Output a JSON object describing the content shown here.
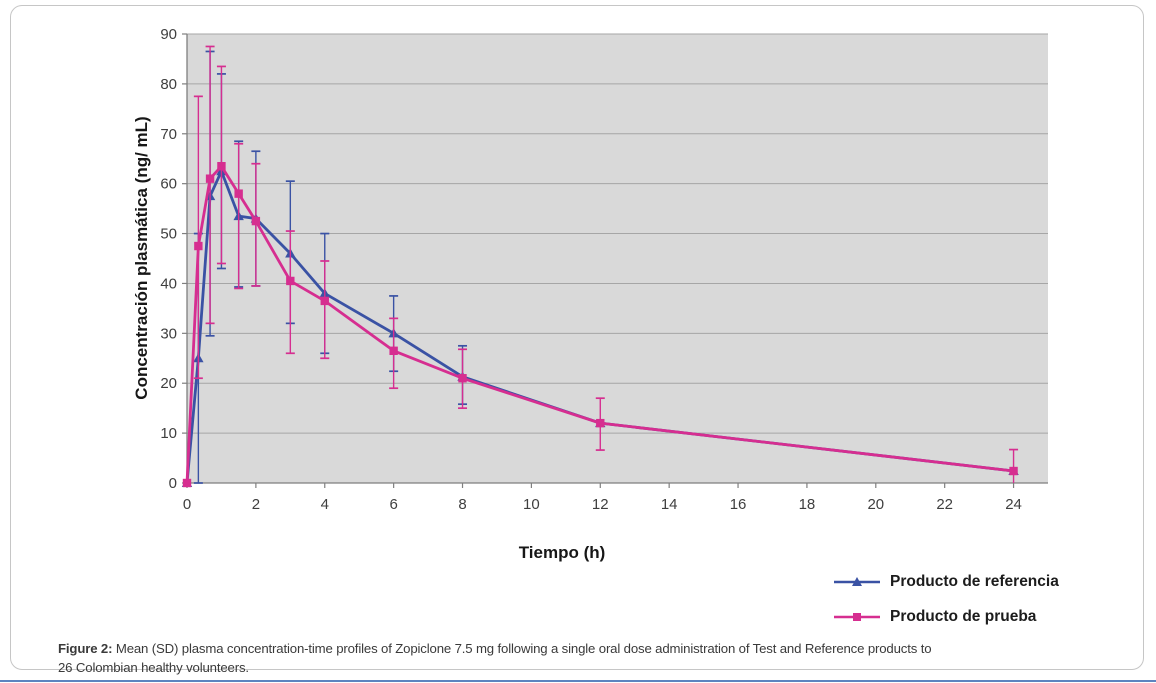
{
  "caption": {
    "label": "Figure 2:",
    "line1": " Mean (SD) plasma concentration-time profiles of Zopiclone 7.5 mg following a single oral dose administration of Test and Reference products to",
    "line2": "26 Colombian healthy volunteers."
  },
  "decor": {
    "bottom_rule_color": "#5d84c0",
    "border_color": "#c6c6c6"
  },
  "chart_data": {
    "type": "line",
    "title": "",
    "xlabel": "Tiempo (h)",
    "ylabel": "Concentración plasmática (ng/ mL)",
    "xlim": [
      0,
      25
    ],
    "ylim": [
      0,
      90
    ],
    "xticks": [
      0,
      2,
      4,
      6,
      8,
      10,
      12,
      14,
      16,
      18,
      20,
      22,
      24
    ],
    "yticks": [
      0,
      10,
      20,
      30,
      40,
      50,
      60,
      70,
      80,
      90
    ],
    "grid": "horizontal",
    "legend_position": "bottom-right",
    "plot_bg": "#d9d9d9",
    "grid_color": "#a6a6a6",
    "axis_color": "#7f7f7f",
    "tick_label_color": "#3f3f3f",
    "x": [
      0,
      0.33,
      0.67,
      1,
      1.5,
      2,
      3,
      4,
      6,
      8,
      12,
      24
    ],
    "series": [
      {
        "name": "Producto de referencia",
        "color": "#3a52a4",
        "marker": "triangle",
        "values": [
          0,
          25,
          57.5,
          62.5,
          53.5,
          53,
          46,
          38,
          30,
          21.3,
          12,
          2.4
        ],
        "err_lo": [
          null,
          0,
          29.5,
          43,
          39.3,
          39.5,
          32,
          26,
          22.4,
          15.8,
          null,
          null
        ],
        "err_hi": [
          null,
          50,
          86.5,
          82,
          68.5,
          66.5,
          60.5,
          50,
          37.5,
          27.5,
          null,
          null
        ]
      },
      {
        "name": "Producto de prueba",
        "color": "#d62e90",
        "marker": "square",
        "values": [
          0,
          47.5,
          61,
          63.5,
          58,
          52.5,
          40.5,
          36.5,
          26.5,
          21,
          12,
          2.4
        ],
        "err_lo": [
          null,
          21,
          32,
          44,
          39,
          39.5,
          26,
          25,
          19,
          15,
          6.6,
          -1.5
        ],
        "err_hi": [
          null,
          77.5,
          87.5,
          83.5,
          68,
          64,
          50.5,
          44.5,
          33,
          26.8,
          17,
          6.7
        ]
      }
    ]
  }
}
